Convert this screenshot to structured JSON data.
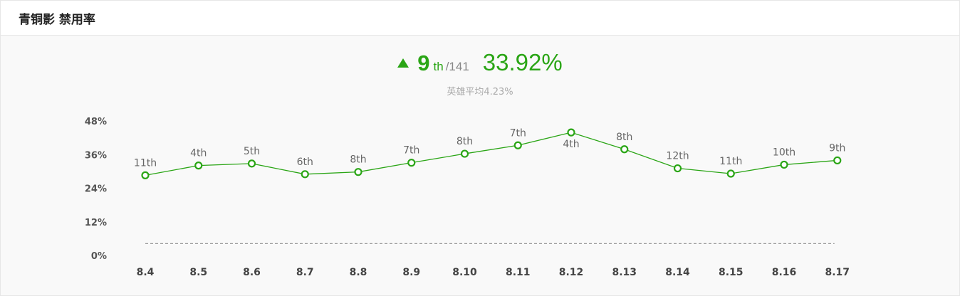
{
  "header": {
    "title": "青铜影 禁用率"
  },
  "summary": {
    "rank": "9",
    "rank_suffix": "th",
    "rank_total": "/141",
    "rate": "33.92%",
    "hero_avg": "英雄平均4.23%",
    "trend": "up"
  },
  "colors": {
    "accent": "#2aa515",
    "avg_line": "#999999"
  },
  "chart_data": {
    "type": "line",
    "categories": [
      "8.4",
      "8.5",
      "8.6",
      "8.7",
      "8.8",
      "8.9",
      "8.10",
      "8.11",
      "8.12",
      "8.13",
      "8.14",
      "8.15",
      "8.16",
      "8.17"
    ],
    "series": [
      {
        "values": [
          28.6,
          32.1,
          32.8,
          29.0,
          29.8,
          33.1,
          36.3,
          39.3,
          43.9,
          37.9,
          31.1,
          29.2,
          32.4,
          33.92
        ],
        "labels": [
          "11th",
          "4th",
          "5th",
          "6th",
          "8th",
          "7th",
          "8th",
          "7th",
          "4th",
          "8th",
          "12th",
          "11th",
          "10th",
          "9th"
        ]
      }
    ],
    "average": 4.23,
    "ylim": [
      0,
      48
    ],
    "yticks": [
      "0%",
      "12%",
      "24%",
      "36%",
      "48%"
    ],
    "ytick_values": [
      0,
      12,
      24,
      36,
      48
    ],
    "grid": false
  }
}
